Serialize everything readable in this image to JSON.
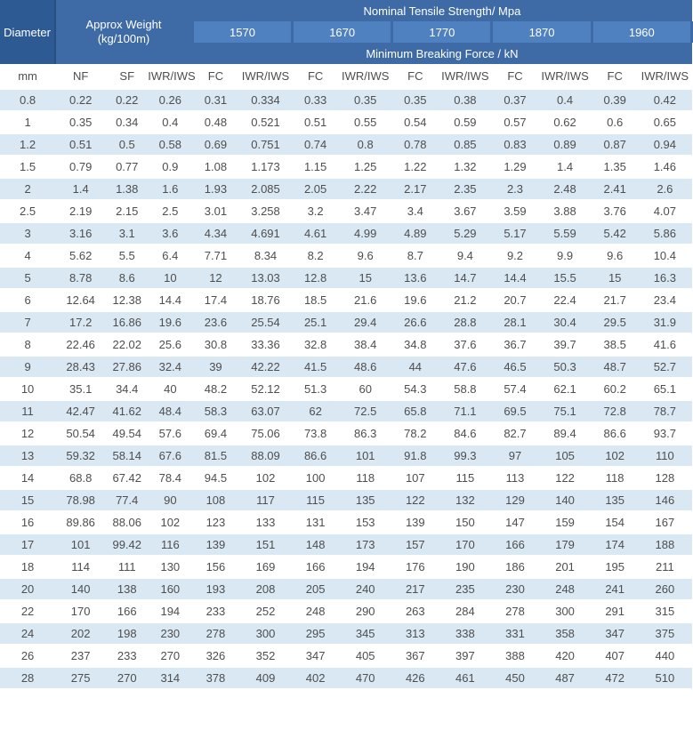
{
  "colors": {
    "header_dark": "#2e5a94",
    "header_band": "#3e6ba6",
    "header_cell": "#4f81c1",
    "row_stripe": "#d9e8f3",
    "text": "#4e4e4e"
  },
  "chart_data": {
    "type": "table",
    "header": {
      "diameter_label": "Diameter",
      "approx_weight_label": "Approx Weight",
      "approx_weight_unit": "(kg/100m)",
      "nominal_tensile_label": "Nominal Tensile Strength/ Mpa",
      "min_breaking_label": "Minimum Breaking Force / kN",
      "tensile_strengths": [
        "1570",
        "1670",
        "1770",
        "1870",
        "1960"
      ]
    },
    "sub_headers": [
      "mm",
      "NF",
      "SF",
      "IWR/IWS",
      "FC",
      "IWR/IWS",
      "FC",
      "IWR/IWS",
      "FC",
      "IWR/IWS",
      "FC",
      "IWR/IWS",
      "FC",
      "IWR/IWS"
    ],
    "rows": [
      [
        0.8,
        0.22,
        0.22,
        0.26,
        0.31,
        0.334,
        0.33,
        0.35,
        0.35,
        0.38,
        0.37,
        0.4,
        0.39,
        0.42
      ],
      [
        1,
        0.35,
        0.34,
        0.4,
        0.48,
        0.521,
        0.51,
        0.55,
        0.54,
        0.59,
        0.57,
        0.62,
        0.6,
        0.65
      ],
      [
        1.2,
        0.51,
        0.5,
        0.58,
        0.69,
        0.751,
        0.74,
        0.8,
        0.78,
        0.85,
        0.83,
        0.89,
        0.87,
        0.94
      ],
      [
        1.5,
        0.79,
        0.77,
        0.9,
        1.08,
        1.173,
        1.15,
        1.25,
        1.22,
        1.32,
        1.29,
        1.4,
        1.35,
        1.46
      ],
      [
        2,
        1.4,
        1.38,
        1.6,
        1.93,
        2.085,
        2.05,
        2.22,
        2.17,
        2.35,
        2.3,
        2.48,
        2.41,
        2.6
      ],
      [
        2.5,
        2.19,
        2.15,
        2.5,
        3.01,
        3.258,
        3.2,
        3.47,
        3.4,
        3.67,
        3.59,
        3.88,
        3.76,
        4.07
      ],
      [
        3,
        3.16,
        3.1,
        3.6,
        4.34,
        4.691,
        4.61,
        4.99,
        4.89,
        5.29,
        5.17,
        5.59,
        5.42,
        5.86
      ],
      [
        4,
        5.62,
        5.5,
        6.4,
        7.71,
        8.34,
        8.2,
        9.6,
        8.7,
        9.4,
        9.2,
        9.9,
        9.6,
        10.4
      ],
      [
        5,
        8.78,
        8.6,
        10,
        12,
        13.03,
        12.8,
        15,
        13.6,
        14.7,
        14.4,
        15.5,
        15,
        16.3
      ],
      [
        6,
        12.64,
        12.38,
        14.4,
        17.4,
        18.76,
        18.5,
        21.6,
        19.6,
        21.2,
        20.7,
        22.4,
        21.7,
        23.4
      ],
      [
        7,
        17.2,
        16.86,
        19.6,
        23.6,
        25.54,
        25.1,
        29.4,
        26.6,
        28.8,
        28.1,
        30.4,
        29.5,
        31.9
      ],
      [
        8,
        22.46,
        22.02,
        25.6,
        30.8,
        33.36,
        32.8,
        38.4,
        34.8,
        37.6,
        36.7,
        39.7,
        38.5,
        41.6
      ],
      [
        9,
        28.43,
        27.86,
        32.4,
        39,
        42.22,
        41.5,
        48.6,
        44,
        47.6,
        46.5,
        50.3,
        48.7,
        52.7
      ],
      [
        10,
        35.1,
        34.4,
        40,
        48.2,
        52.12,
        51.3,
        60,
        54.3,
        58.8,
        57.4,
        62.1,
        60.2,
        65.1
      ],
      [
        11,
        42.47,
        41.62,
        48.4,
        58.3,
        63.07,
        62,
        72.5,
        65.8,
        71.1,
        69.5,
        75.1,
        72.8,
        78.7
      ],
      [
        12,
        50.54,
        49.54,
        57.6,
        69.4,
        75.06,
        73.8,
        86.3,
        78.2,
        84.6,
        82.7,
        89.4,
        86.6,
        93.7
      ],
      [
        13,
        59.32,
        58.14,
        67.6,
        81.5,
        88.09,
        86.6,
        101,
        91.8,
        99.3,
        97,
        105,
        102,
        110
      ],
      [
        14,
        68.8,
        67.42,
        78.4,
        94.5,
        102,
        100,
        118,
        107,
        115,
        113,
        122,
        118,
        128
      ],
      [
        15,
        78.98,
        77.4,
        90,
        108,
        117,
        115,
        135,
        122,
        132,
        129,
        140,
        135,
        146
      ],
      [
        16,
        89.86,
        88.06,
        102,
        123,
        133,
        131,
        153,
        139,
        150,
        147,
        159,
        154,
        167
      ],
      [
        17,
        101,
        99.42,
        116,
        139,
        151,
        148,
        173,
        157,
        170,
        166,
        179,
        174,
        188
      ],
      [
        18,
        114,
        111,
        130,
        156,
        169,
        166,
        194,
        176,
        190,
        186,
        201,
        195,
        211
      ],
      [
        20,
        140,
        138,
        160,
        193,
        208,
        205,
        240,
        217,
        235,
        230,
        248,
        241,
        260
      ],
      [
        22,
        170,
        166,
        194,
        233,
        252,
        248,
        290,
        263,
        284,
        278,
        300,
        291,
        315
      ],
      [
        24,
        202,
        198,
        230,
        278,
        300,
        295,
        345,
        313,
        338,
        331,
        358,
        347,
        375
      ],
      [
        26,
        237,
        233,
        270,
        326,
        352,
        347,
        405,
        367,
        397,
        388,
        420,
        407,
        440
      ],
      [
        28,
        275,
        270,
        314,
        378,
        409,
        402,
        470,
        426,
        461,
        450,
        487,
        472,
        510
      ]
    ]
  }
}
